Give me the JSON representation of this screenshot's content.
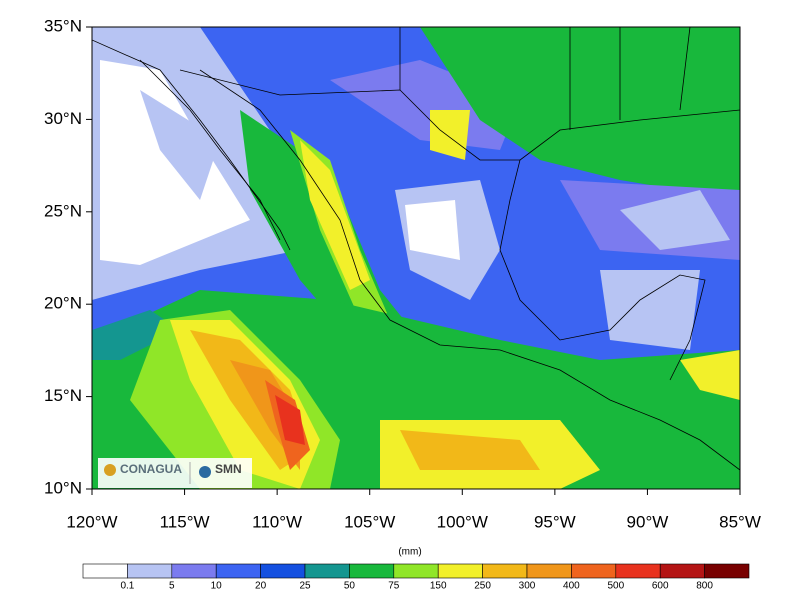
{
  "map": {
    "yticks": [
      "35°N",
      "30°N",
      "25°N",
      "20°N",
      "15°N",
      "10°N"
    ],
    "xticks": [
      "120°W",
      "115°W",
      "110°W",
      "105°W",
      "100°W",
      "95°W",
      "90°W",
      "85°W"
    ]
  },
  "colorbar": {
    "unit": "(mm)",
    "labels": [
      "0.1",
      "5",
      "10",
      "20",
      "25",
      "50",
      "75",
      "150",
      "250",
      "300",
      "400",
      "500",
      "600",
      "800"
    ],
    "colors": [
      "#ffffff",
      "#b7c4f3",
      "#7b7bef",
      "#3c64f2",
      "#1450e0",
      "#149690",
      "#18b83c",
      "#90e628",
      "#f2f02a",
      "#f2b818",
      "#f0961a",
      "#ef641e",
      "#e8321e",
      "#b41414",
      "#780000"
    ]
  },
  "logos": {
    "left": "CONAGUA",
    "right": "SMN"
  }
}
